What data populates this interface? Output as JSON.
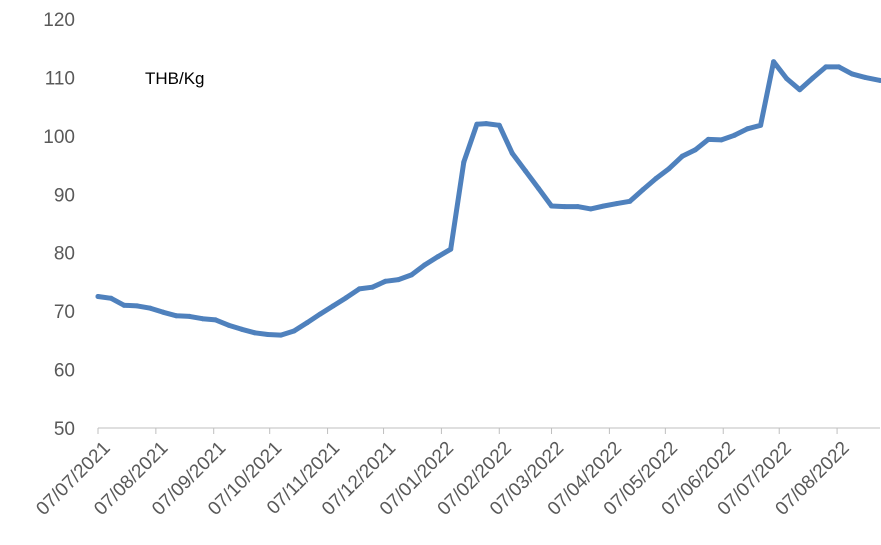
{
  "chart_data": {
    "type": "line",
    "title": "",
    "xlabel": "",
    "ylabel": "",
    "unit_label": "THB/Kg",
    "ylim": [
      50,
      120
    ],
    "y_ticks": [
      50,
      60,
      70,
      80,
      90,
      100,
      110,
      120
    ],
    "x_range": [
      "07/07/2021",
      "30/08/2022"
    ],
    "x_ticks": [
      "07/07/2021",
      "07/08/2021",
      "07/09/2021",
      "07/10/2021",
      "07/11/2021",
      "07/12/2021",
      "07/01/2022",
      "07/02/2022",
      "07/03/2022",
      "07/04/2022",
      "07/05/2022",
      "07/06/2022",
      "07/07/2022",
      "07/08/2022"
    ],
    "grid": false,
    "legend": "none",
    "line_color": "#4F81BD",
    "series": [
      {
        "x": [
          "07/07/2021",
          "14/07/2021",
          "21/07/2021",
          "28/07/2021",
          "04/08/2021",
          "11/08/2021",
          "18/08/2021",
          "25/08/2021",
          "01/09/2021",
          "08/09/2021",
          "15/09/2021",
          "22/09/2021",
          "29/09/2021",
          "06/10/2021",
          "13/10/2021",
          "20/10/2021",
          "27/10/2021",
          "03/11/2021",
          "10/11/2021",
          "17/11/2021",
          "24/11/2021",
          "01/12/2021",
          "08/12/2021",
          "15/12/2021",
          "22/12/2021",
          "29/12/2021",
          "05/01/2022",
          "12/01/2022",
          "19/01/2022",
          "26/01/2022",
          "31/01/2022",
          "07/02/2022",
          "14/02/2022",
          "21/02/2022",
          "28/02/2022",
          "07/03/2022",
          "14/03/2022",
          "21/03/2022",
          "28/03/2022",
          "04/04/2022",
          "11/04/2022",
          "18/04/2022",
          "25/04/2022",
          "02/05/2022",
          "09/05/2022",
          "16/05/2022",
          "23/05/2022",
          "30/05/2022",
          "06/06/2022",
          "13/06/2022",
          "20/06/2022",
          "27/06/2022",
          "04/07/2022",
          "11/07/2022",
          "18/07/2022",
          "25/07/2022",
          "01/08/2022",
          "08/08/2022",
          "15/08/2022",
          "22/08/2022",
          "30/08/2022"
        ],
        "values": [
          72.5,
          72.2,
          71.0,
          70.9,
          70.5,
          69.8,
          69.2,
          69.1,
          68.7,
          68.5,
          67.6,
          66.9,
          66.3,
          66.0,
          65.9,
          66.6,
          68.0,
          69.5,
          70.9,
          72.3,
          73.8,
          74.1,
          75.1,
          75.4,
          76.2,
          77.9,
          79.3,
          80.6,
          95.5,
          102.0,
          102.1,
          101.8,
          97.0,
          94.0,
          91.0,
          88.0,
          87.9,
          87.9,
          87.5,
          88.0,
          88.4,
          88.8,
          90.8,
          92.7,
          94.4,
          96.5,
          97.6,
          99.4,
          99.3,
          100.1,
          101.2,
          101.8,
          112.7,
          109.8,
          107.9,
          109.9,
          111.8,
          111.8,
          110.6,
          110.0,
          109.5
        ]
      }
    ]
  }
}
